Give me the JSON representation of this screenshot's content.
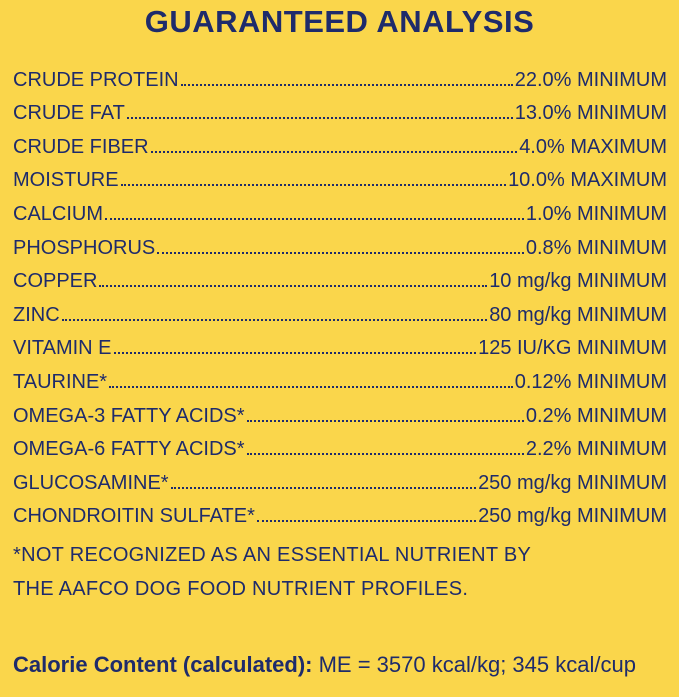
{
  "header": {
    "title": "GUARANTEED ANALYSIS"
  },
  "rows": [
    {
      "name": "CRUDE PROTEIN",
      "value": "22.0% MINIMUM"
    },
    {
      "name": "CRUDE FAT",
      "value": "13.0% MINIMUM"
    },
    {
      "name": "CRUDE FIBER",
      "value": "4.0% MAXIMUM"
    },
    {
      "name": "MOISTURE",
      "value": "10.0% MAXIMUM"
    },
    {
      "name": "CALCIUM",
      "value": "1.0% MINIMUM"
    },
    {
      "name": "PHOSPHORUS",
      "value": "0.8% MINIMUM"
    },
    {
      "name": "COPPER",
      "value": "10 mg/kg MINIMUM"
    },
    {
      "name": "ZINC",
      "value": "80 mg/kg MINIMUM"
    },
    {
      "name": "VITAMIN E",
      "value": "125 IU/KG MINIMUM"
    },
    {
      "name": "TAURINE*",
      "value": "0.12% MINIMUM"
    },
    {
      "name": "OMEGA-3 FATTY ACIDS*",
      "value": "0.2% MINIMUM"
    },
    {
      "name": "OMEGA-6 FATTY ACIDS*",
      "value": "2.2% MINIMUM"
    },
    {
      "name": "GLUCOSAMINE*",
      "value": "250 mg/kg MINIMUM"
    },
    {
      "name": "CHONDROITIN SULFATE*",
      "value": "250 mg/kg MINIMUM"
    }
  ],
  "footnote": "*NOT RECOGNIZED AS AN ESSENTIAL NUTRIENT BY THE AAFCO DOG FOOD NUTRIENT PROFILES.",
  "calorie": {
    "label": "Calorie Content (calculated):",
    "value": "ME = 3570 kcal/kg; 345 kcal/cup"
  }
}
